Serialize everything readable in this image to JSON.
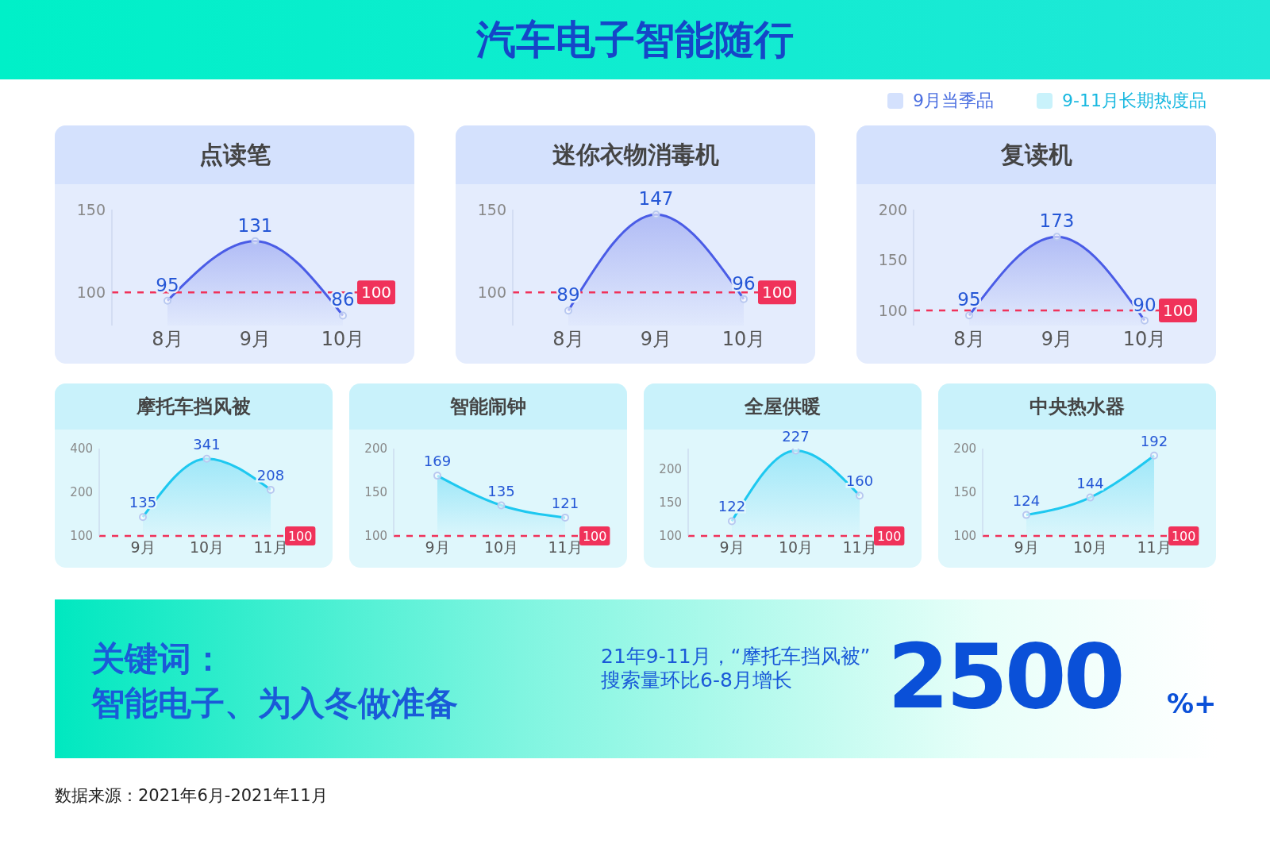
{
  "chart_data": [
    {
      "type": "other",
      "title": "汽车电子智能随行",
      "annotations": [
        "9月当季品",
        "9-11月长期热度品"
      ]
    },
    {
      "type": "area",
      "title": "点读笔",
      "categories": [
        "8月",
        "9月",
        "10月"
      ],
      "series": [
        {
          "color": "#4a5ce6",
          "values": [
            95,
            131,
            86
          ]
        }
      ],
      "ylim": [
        80,
        150
      ],
      "yticks": [
        100,
        150
      ],
      "data_labels": true,
      "marker": "circle",
      "ref_lines": [
        {
          "axis": "y",
          "value": 100,
          "label": "100",
          "color": "#f0325a",
          "line_style": "dashed"
        }
      ]
    },
    {
      "type": "area",
      "title": "迷你衣物消毒机",
      "categories": [
        "8月",
        "9月",
        "10月"
      ],
      "series": [
        {
          "color": "#4a5ce6",
          "values": [
            89,
            147,
            96
          ]
        }
      ],
      "ylim": [
        80,
        150
      ],
      "yticks": [
        100,
        150
      ],
      "data_labels": true,
      "marker": "circle",
      "ref_lines": [
        {
          "axis": "y",
          "value": 100,
          "label": "100",
          "color": "#f0325a",
          "line_style": "dashed"
        }
      ]
    },
    {
      "type": "area",
      "title": "复读机",
      "categories": [
        "8月",
        "9月",
        "10月"
      ],
      "series": [
        {
          "color": "#4a5ce6",
          "values": [
            95,
            173,
            90
          ]
        }
      ],
      "ylim": [
        85,
        200
      ],
      "yticks": [
        100,
        150,
        200
      ],
      "data_labels": true,
      "marker": "circle",
      "ref_lines": [
        {
          "axis": "y",
          "value": 100,
          "label": "100",
          "color": "#f0325a",
          "line_style": "dashed"
        }
      ]
    },
    {
      "type": "area",
      "title": "摩托车挡风被",
      "categories": [
        "9月",
        "10月",
        "11月"
      ],
      "series": [
        {
          "color": "#1ec8f0",
          "values": [
            135,
            341,
            208
          ]
        }
      ],
      "log": true,
      "ylim": [
        100,
        400
      ],
      "yticks": [
        100,
        200,
        400
      ],
      "data_labels": true,
      "marker": "circle",
      "ref_lines": [
        {
          "axis": "y",
          "value": 100,
          "label": "100",
          "color": "#f0325a",
          "line_style": "dashed"
        }
      ]
    },
    {
      "type": "area",
      "title": "智能闹钟",
      "categories": [
        "9月",
        "10月",
        "11月"
      ],
      "series": [
        {
          "color": "#1ec8f0",
          "values": [
            169,
            135,
            121
          ]
        }
      ],
      "ylim": [
        100,
        200
      ],
      "yticks": [
        100,
        150,
        200
      ],
      "data_labels": true,
      "marker": "circle",
      "ref_lines": [
        {
          "axis": "y",
          "value": 100,
          "label": "100",
          "color": "#f0325a",
          "line_style": "dashed"
        }
      ]
    },
    {
      "type": "area",
      "title": "全屋供暖",
      "categories": [
        "9月",
        "10月",
        "11月"
      ],
      "series": [
        {
          "color": "#1ec8f0",
          "values": [
            122,
            227,
            160
          ]
        }
      ],
      "ylim": [
        100,
        230
      ],
      "yticks": [
        100,
        150,
        200
      ],
      "data_labels": true,
      "marker": "circle",
      "ref_lines": [
        {
          "axis": "y",
          "value": 100,
          "label": "100",
          "color": "#f0325a",
          "line_style": "dashed"
        }
      ]
    },
    {
      "type": "area",
      "title": "中央热水器",
      "categories": [
        "9月",
        "10月",
        "11月"
      ],
      "series": [
        {
          "color": "#1ec8f0",
          "values": [
            124,
            144,
            192
          ]
        }
      ],
      "ylim": [
        100,
        200
      ],
      "yticks": [
        100,
        150,
        200
      ],
      "data_labels": true,
      "marker": "circle",
      "ref_lines": [
        {
          "axis": "y",
          "value": 100,
          "label": "100",
          "color": "#f0325a",
          "line_style": "dashed"
        }
      ]
    },
    {
      "type": "other",
      "annotations": [
        "关键词：",
        "智能电子、为入冬做准备",
        "21年9-11月，“摩托车挡风被”",
        "搜索量环比6-8月增长",
        "2500",
        "%+",
        "数据来源：2021年6月-2021年11月"
      ]
    }
  ]
}
